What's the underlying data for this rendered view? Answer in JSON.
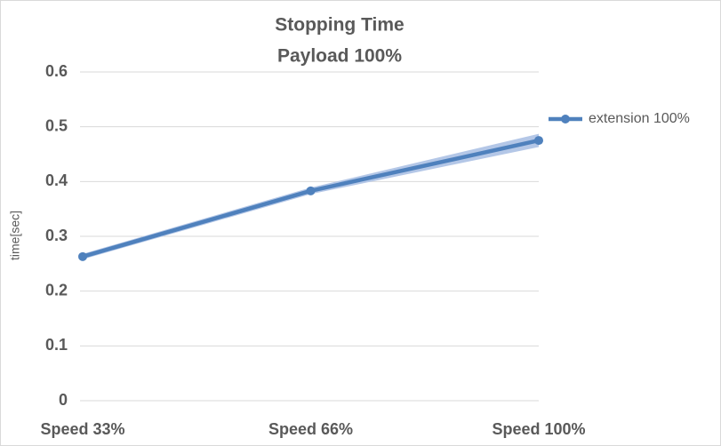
{
  "chart_data": {
    "type": "line",
    "title": "Stopping Time",
    "subtitle": "Payload 100%",
    "y_label": "time[sec]",
    "categories": [
      "Speed 33%",
      "Speed 66%",
      "Speed 100%"
    ],
    "series": [
      {
        "name": "extension 100%",
        "color": "#4f81bd",
        "band_color": "#b4c7e7",
        "values": [
          0.263,
          0.383,
          0.475
        ],
        "errors": [
          0.005,
          0.006,
          0.012
        ]
      }
    ],
    "ylim": [
      0,
      0.6
    ],
    "yticks": [
      0,
      0.1,
      0.2,
      0.3,
      0.4,
      0.5,
      0.6
    ],
    "grid": true,
    "legend": "right"
  }
}
